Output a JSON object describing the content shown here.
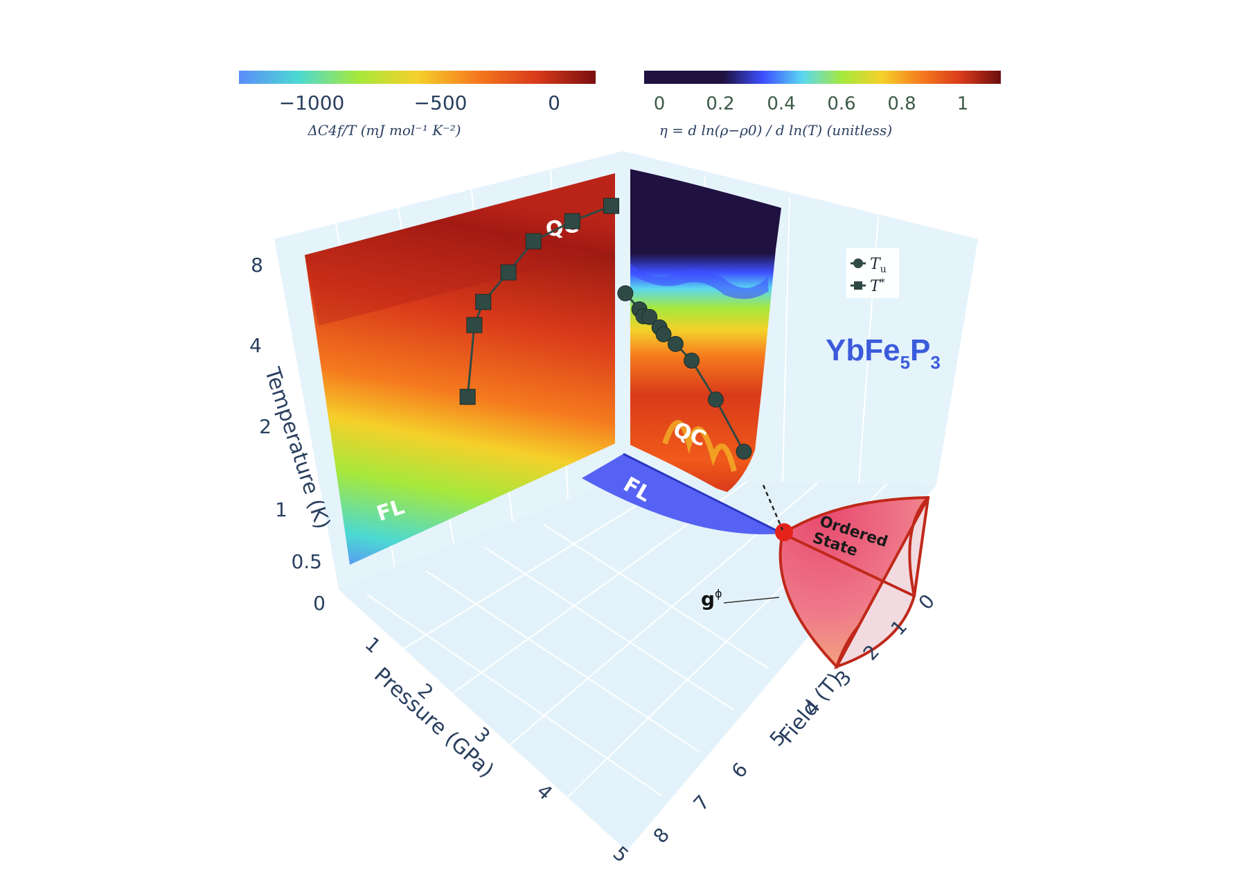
{
  "chart_data": {
    "type": "3d-phase-diagram",
    "title": "YbFe5P3",
    "title_main": "YbFe",
    "title_sub1": "5",
    "title_mid": "P",
    "title_sub2": "3",
    "axes": {
      "temperature": {
        "label": "Temperature (K)",
        "ticks": [
          "0",
          "0.5",
          "1",
          "2",
          "4",
          "8"
        ]
      },
      "pressure": {
        "label": "Pressure (GPa)",
        "ticks": [
          "1",
          "2",
          "3",
          "4",
          "5"
        ]
      },
      "field": {
        "label": "Field (T)",
        "ticks": [
          "0",
          "1",
          "2",
          "3",
          "4",
          "5",
          "6",
          "7",
          "8"
        ]
      }
    },
    "colorbars": [
      {
        "name": "heat-capacity",
        "label": "ΔC4f/T (mJ mol⁻¹ K⁻²)",
        "ticks": [
          "−1000",
          "−500",
          "0"
        ],
        "colors": [
          "#5b8dfa",
          "#4cd9d2",
          "#a6e83c",
          "#f5d02a",
          "#f57a1e",
          "#d93a1a",
          "#7a0f0f"
        ]
      },
      {
        "name": "resistivity-exponent",
        "label": "η = d ln(ρ−ρ0) / d ln(T) (unitless)",
        "ticks": [
          "0",
          "0.2",
          "0.4",
          "0.6",
          "0.8",
          "1"
        ],
        "colors": [
          "#1f1140",
          "#1f1140",
          "#1f1140",
          "#3d4fff",
          "#5ad7f0",
          "#a6e83c",
          "#f5d02a",
          "#f57a1e",
          "#d93a1a",
          "#6b0d0d"
        ]
      }
    ],
    "regions": {
      "qc": "QC",
      "fl": "FL",
      "ordered_line1": "Ordered",
      "ordered_line2": "State",
      "g_phi": "g",
      "g_phi_sup": "ϕ"
    },
    "series": [
      {
        "name": "T*",
        "symbol": "square",
        "axis": "pressure",
        "points": [
          {
            "pressure": 0.0,
            "temperature": 8.2
          },
          {
            "pressure": 0.6,
            "temperature": 8.0
          },
          {
            "pressure": 1.2,
            "temperature": 7.7
          },
          {
            "pressure": 1.6,
            "temperature": 6.4
          },
          {
            "pressure": 2.0,
            "temperature": 5.2
          },
          {
            "pressure": 2.15,
            "temperature": 4.0
          },
          {
            "pressure": 2.3,
            "temperature": 1.9
          }
        ]
      },
      {
        "name": "Tu",
        "symbol": "circle",
        "axis": "field",
        "points": [
          {
            "field": 7.9,
            "temperature": 3.9
          },
          {
            "field": 7.2,
            "temperature": 3.5
          },
          {
            "field": 7.0,
            "temperature": 3.3
          },
          {
            "field": 6.7,
            "temperature": 3.35
          },
          {
            "field": 6.2,
            "temperature": 3.1
          },
          {
            "field": 6.0,
            "temperature": 2.9
          },
          {
            "field": 5.4,
            "temperature": 2.7
          },
          {
            "field": 4.6,
            "temperature": 2.3
          },
          {
            "field": 3.4,
            "temperature": 1.6
          },
          {
            "field": 2.0,
            "temperature": 0.9
          }
        ]
      }
    ],
    "legend": [
      {
        "label": "Tu",
        "sub": "u",
        "main": "T",
        "symbol": "circle"
      },
      {
        "label": "T*",
        "sup": "*",
        "main": "T",
        "symbol": "square"
      }
    ]
  }
}
